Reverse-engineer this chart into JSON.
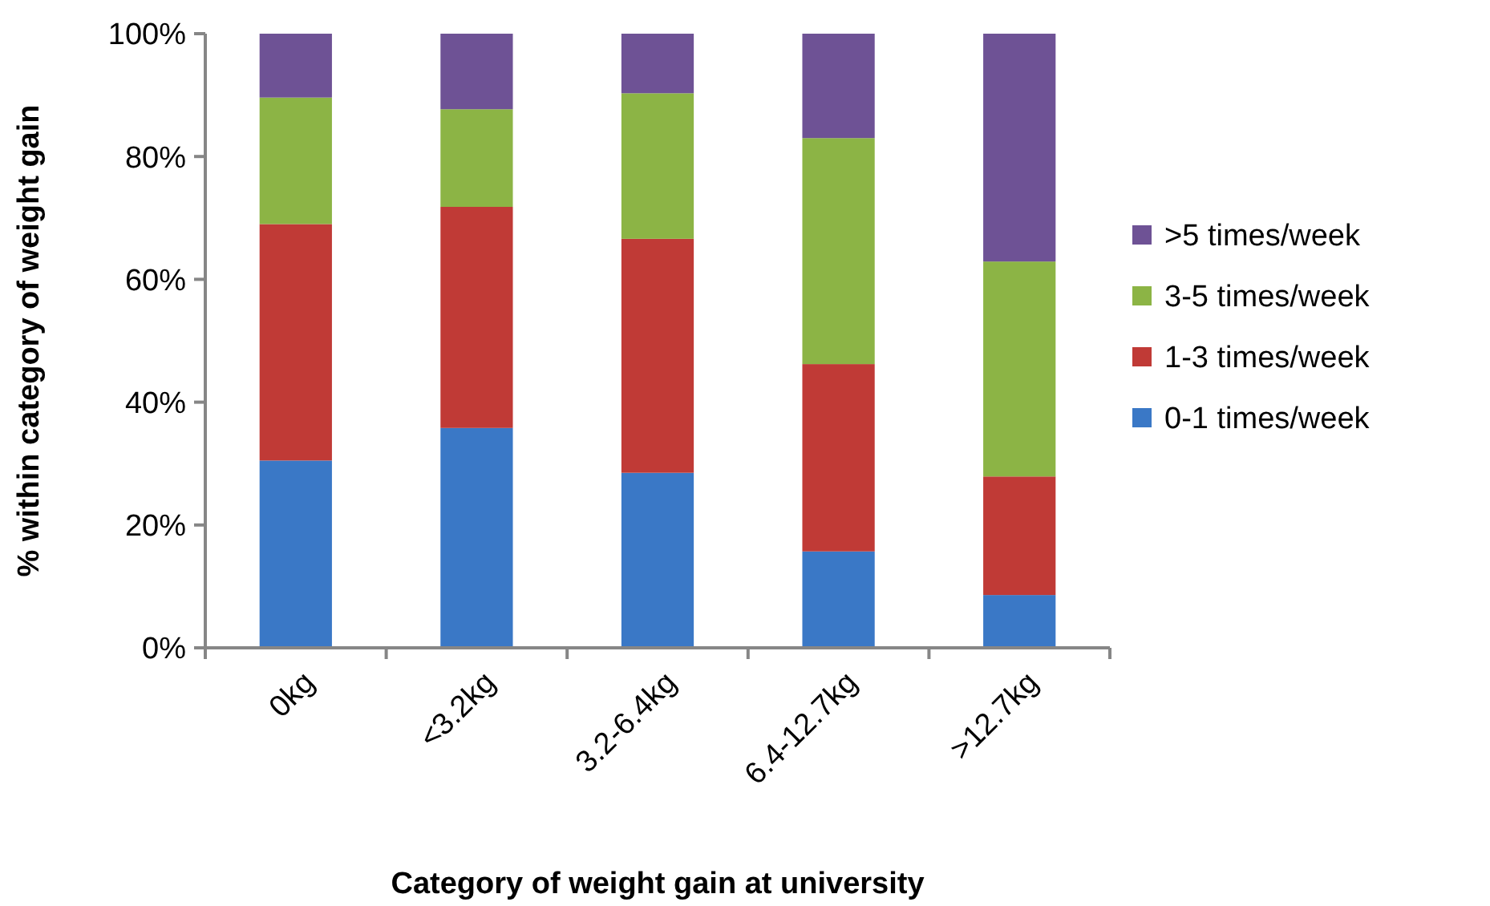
{
  "chart_data": {
    "type": "bar",
    "stacked": true,
    "xlabel": "Category of weight gain at university",
    "ylabel": "% within category of weight gain",
    "categories": [
      "0kg",
      "<3.2kg",
      "3.2-6.4kg",
      "6.4-12.7kg",
      ">12.7kg"
    ],
    "series": [
      {
        "name": "0-1 times/week",
        "color": "#3a78c6",
        "values": [
          30.5,
          35.8,
          28.5,
          15.7,
          8.6
        ]
      },
      {
        "name": "1-3 times/week",
        "color": "#c03a36",
        "values": [
          38.5,
          36.0,
          38.1,
          30.5,
          19.3
        ]
      },
      {
        "name": "3-5 times/week",
        "color": "#8cb445",
        "values": [
          20.6,
          15.9,
          23.7,
          36.8,
          35.0
        ]
      },
      {
        "name": ">5 times/week",
        "color": "#6e5295",
        "values": [
          10.4,
          12.3,
          9.7,
          17.0,
          37.1
        ]
      }
    ],
    "ylim": [
      0,
      100
    ],
    "yticks": [
      {
        "value": 0,
        "label": "0%"
      },
      {
        "value": 20,
        "label": "20%"
      },
      {
        "value": 40,
        "label": "40%"
      },
      {
        "value": 60,
        "label": "60%"
      },
      {
        "value": 80,
        "label": "80%"
      },
      {
        "value": 100,
        "label": "100%"
      }
    ],
    "grid": false,
    "legend": "right"
  }
}
